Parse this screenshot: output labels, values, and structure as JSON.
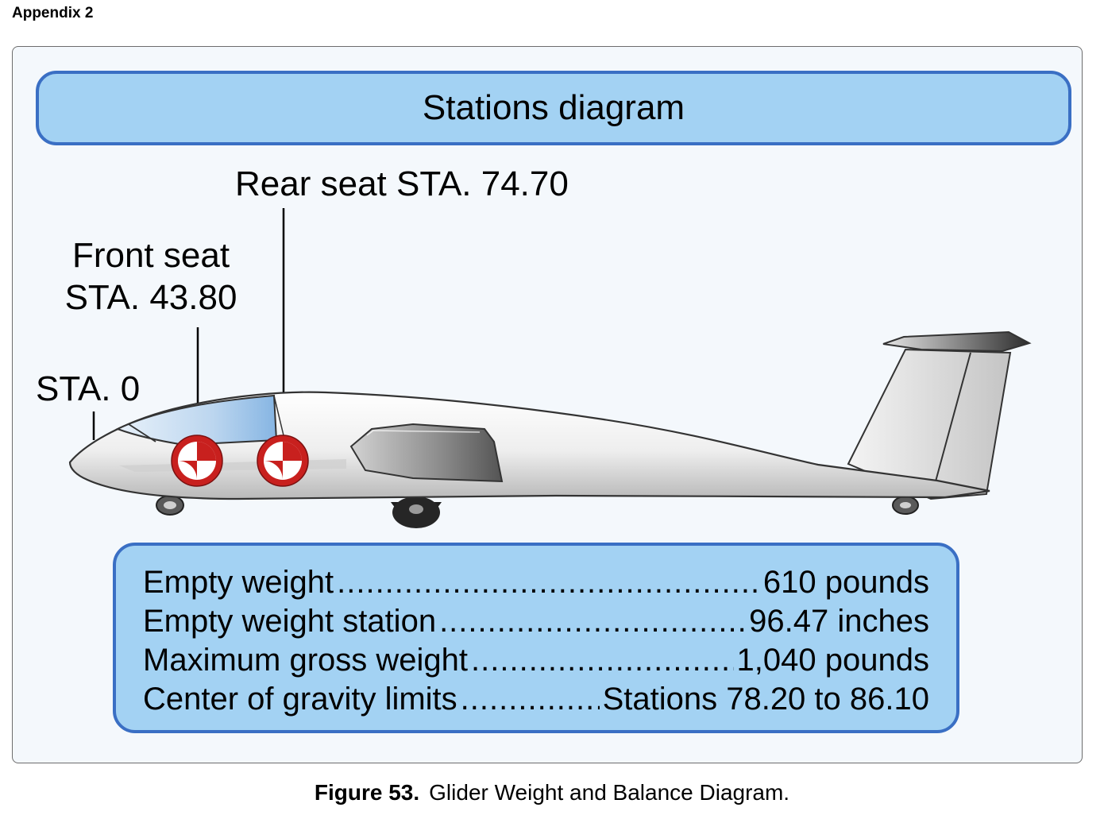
{
  "appendix_label": "Appendix 2",
  "diagram": {
    "title": "Stations diagram",
    "labels": {
      "rear_seat": "Rear seat STA. 74.70",
      "front_seat_line1": "Front seat",
      "front_seat_line2": "STA. 43.80",
      "datum": "STA. 0"
    },
    "specs": [
      {
        "label": "Empty weight",
        "value": "610 pounds"
      },
      {
        "label": "Empty weight station",
        "value": "96.47 inches"
      },
      {
        "label": "Maximum gross weight",
        "value": "1,040 pounds"
      },
      {
        "label": "Center of gravity limits",
        "value": "Stations 78.20 to 86.10"
      }
    ]
  },
  "caption": {
    "number": "Figure 53.",
    "text": "Glider Weight and Balance Diagram."
  },
  "colors": {
    "panel_fill": "#a3d2f3",
    "panel_border": "#3a6fc4",
    "cg_marker_red": "#c8201e"
  }
}
